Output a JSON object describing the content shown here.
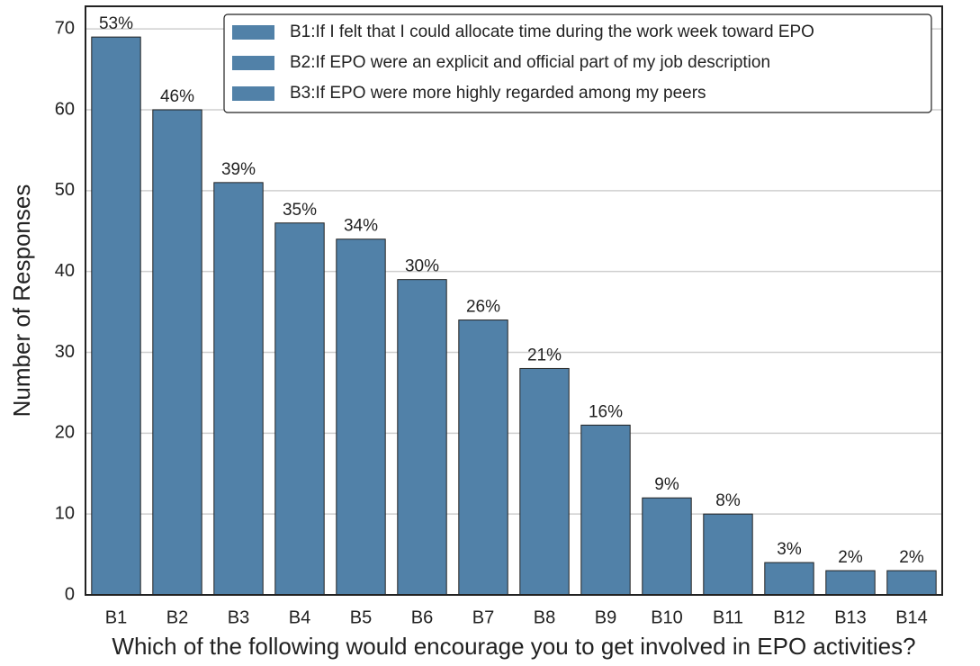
{
  "chart_data": {
    "type": "bar",
    "x_label": "Which of the following would encourage you to get involved in EPO activities?",
    "y_label": "Number of Responses",
    "categories": [
      "B1",
      "B2",
      "B3",
      "B4",
      "B5",
      "B6",
      "B7",
      "B8",
      "B9",
      "B10",
      "B11",
      "B12",
      "B13",
      "B14"
    ],
    "values": [
      69,
      60,
      51,
      46,
      44,
      39,
      34,
      28,
      21,
      12,
      10,
      4,
      3,
      3
    ],
    "percent_labels": [
      "53%",
      "46%",
      "39%",
      "35%",
      "34%",
      "30%",
      "26%",
      "21%",
      "16%",
      "9%",
      "8%",
      "3%",
      "2%",
      "2%"
    ],
    "color": "#5181a8",
    "legend": [
      "B1:If I felt that I could allocate time during the work week toward EPO",
      "B2:If EPO were an explicit and official part of my job description",
      "B3:If EPO were more highly regarded among my peers"
    ],
    "legend_position": "upper right",
    "ylim": [
      0,
      72.8
    ],
    "yticks": [
      0,
      10,
      20,
      30,
      40,
      50,
      60,
      70
    ],
    "grid": true
  }
}
